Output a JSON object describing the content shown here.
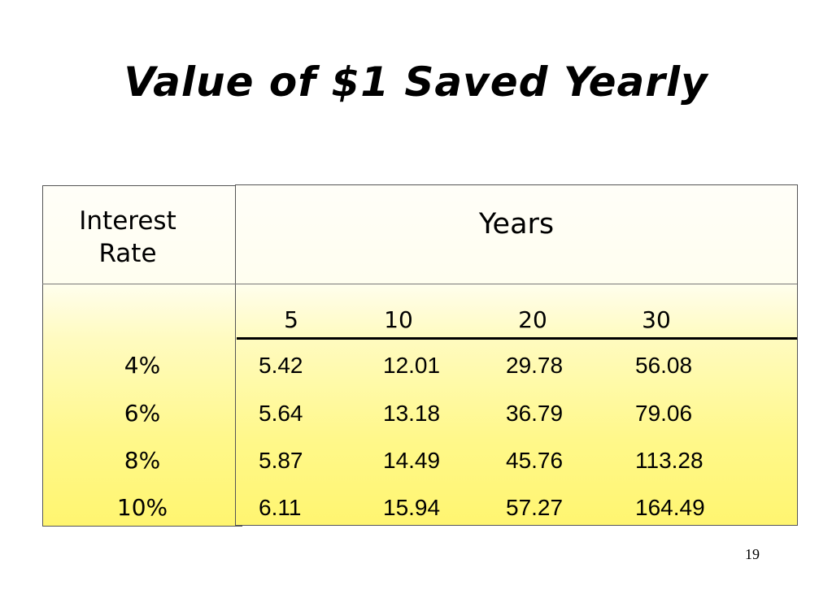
{
  "title": "Value of $1 Saved Yearly",
  "table": {
    "rate_header_line1": "Interest",
    "rate_header_line2": "Rate",
    "years_header": "Years",
    "years": [
      "5",
      "10",
      "20",
      "30"
    ],
    "rows": [
      {
        "rate": "4%",
        "values": [
          "5.42",
          "12.01",
          "29.78",
          "56.08"
        ]
      },
      {
        "rate": "6%",
        "values": [
          "5.64",
          "13.18",
          "36.79",
          "79.06"
        ]
      },
      {
        "rate": "8%",
        "values": [
          "5.87",
          "14.49",
          "45.76",
          "113.28"
        ]
      },
      {
        "rate": "10%",
        "values": [
          "6.11",
          "15.94",
          "57.27",
          "164.49"
        ]
      }
    ]
  },
  "page_number": "19",
  "colors": {
    "table_fill_top": "#fffef0",
    "table_fill_bottom": "#fff570",
    "border": "#555555"
  }
}
